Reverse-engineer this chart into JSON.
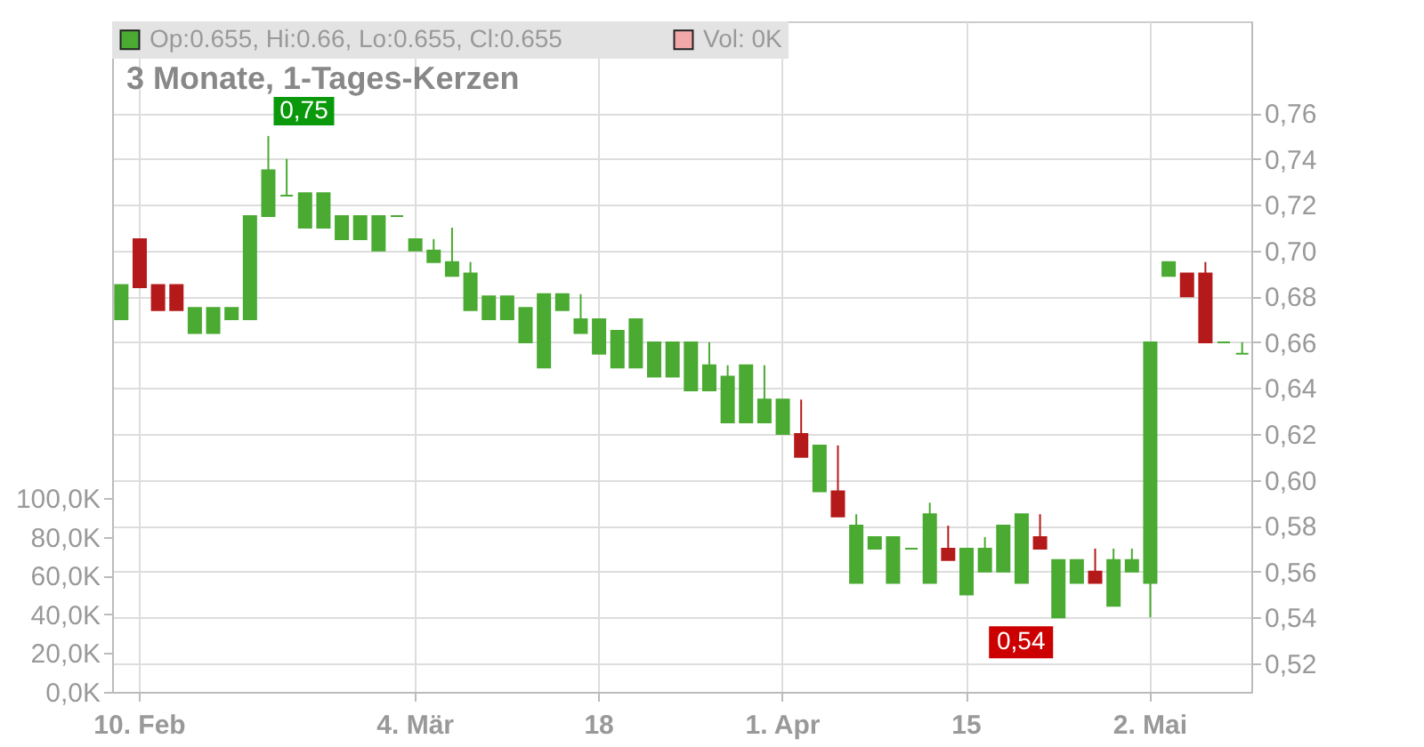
{
  "chart_data": {
    "type": "candlestick",
    "title": "3 Monate, 1-Tages-Kerzen",
    "categories": [
      null,
      "10. Feb",
      null,
      null,
      null,
      null,
      null,
      null,
      null,
      null,
      null,
      null,
      null,
      null,
      null,
      null,
      "4. Mär",
      null,
      null,
      null,
      null,
      null,
      null,
      null,
      null,
      null,
      "18",
      null,
      null,
      null,
      null,
      null,
      null,
      null,
      null,
      null,
      "1. Apr",
      null,
      null,
      null,
      null,
      null,
      null,
      null,
      null,
      null,
      "15",
      null,
      null,
      null,
      null,
      null,
      null,
      null,
      null,
      null,
      "2. Mai",
      null,
      null,
      null,
      null,
      null
    ],
    "series": [
      {
        "name": "Op:0.655, Hi:0.66, Lo:0.655, Cl:0.655",
        "color": "#4aaa32",
        "type": "candlestick",
        "ohlc": [
          [
            0.67,
            0.685,
            0.67,
            0.685
          ],
          [
            0.705,
            0.705,
            0.684,
            0.684
          ],
          [
            0.685,
            0.685,
            0.674,
            0.674
          ],
          [
            0.685,
            0.685,
            0.674,
            0.674
          ],
          [
            0.664,
            0.675,
            0.664,
            0.675
          ],
          [
            0.664,
            0.675,
            0.664,
            0.675
          ],
          [
            0.67,
            0.675,
            0.67,
            0.675
          ],
          [
            0.67,
            0.715,
            0.67,
            0.715
          ],
          [
            0.715,
            0.75,
            0.715,
            0.735
          ],
          [
            0.724,
            0.74,
            0.724,
            0.724
          ],
          [
            0.71,
            0.725,
            0.71,
            0.725
          ],
          [
            0.71,
            0.725,
            0.71,
            0.725
          ],
          [
            0.705,
            0.715,
            0.705,
            0.715
          ],
          [
            0.705,
            0.715,
            0.705,
            0.715
          ],
          [
            0.7,
            0.715,
            0.7,
            0.715
          ],
          [
            0.715,
            0.715,
            0.715,
            0.715
          ],
          [
            0.7,
            0.705,
            0.7,
            0.705
          ],
          [
            0.695,
            0.705,
            0.695,
            0.7
          ],
          [
            0.689,
            0.71,
            0.689,
            0.695
          ],
          [
            0.674,
            0.695,
            0.674,
            0.69
          ],
          [
            0.67,
            0.68,
            0.67,
            0.68
          ],
          [
            0.67,
            0.68,
            0.67,
            0.68
          ],
          [
            0.66,
            0.675,
            0.66,
            0.675
          ],
          [
            0.649,
            0.681,
            0.649,
            0.681
          ],
          [
            0.674,
            0.681,
            0.674,
            0.681
          ],
          [
            0.664,
            0.681,
            0.664,
            0.67
          ],
          [
            0.655,
            0.67,
            0.655,
            0.67
          ],
          [
            0.649,
            0.665,
            0.649,
            0.665
          ],
          [
            0.649,
            0.67,
            0.649,
            0.67
          ],
          [
            0.645,
            0.66,
            0.645,
            0.66
          ],
          [
            0.645,
            0.66,
            0.645,
            0.66
          ],
          [
            0.639,
            0.66,
            0.639,
            0.66
          ],
          [
            0.639,
            0.66,
            0.639,
            0.65
          ],
          [
            0.625,
            0.65,
            0.625,
            0.645
          ],
          [
            0.625,
            0.65,
            0.625,
            0.65
          ],
          [
            0.625,
            0.65,
            0.625,
            0.635
          ],
          [
            0.62,
            0.635,
            0.62,
            0.635
          ],
          [
            0.62,
            0.635,
            0.61,
            0.61
          ],
          [
            0.595,
            0.615,
            0.595,
            0.615
          ],
          [
            0.595,
            0.615,
            0.584,
            0.584
          ],
          [
            0.555,
            0.585,
            0.555,
            0.58
          ],
          [
            0.57,
            0.575,
            0.57,
            0.575
          ],
          [
            0.555,
            0.575,
            0.555,
            0.575
          ],
          [
            0.57,
            0.57,
            0.57,
            0.57
          ],
          [
            0.555,
            0.59,
            0.555,
            0.585
          ],
          [
            0.57,
            0.58,
            0.565,
            0.565
          ],
          [
            0.55,
            0.57,
            0.55,
            0.57
          ],
          [
            0.56,
            0.575,
            0.56,
            0.57
          ],
          [
            0.56,
            0.58,
            0.56,
            0.58
          ],
          [
            0.555,
            0.585,
            0.555,
            0.585
          ],
          [
            0.575,
            0.585,
            0.57,
            0.57
          ],
          [
            0.54,
            0.565,
            0.54,
            0.565
          ],
          [
            0.555,
            0.565,
            0.555,
            0.565
          ],
          [
            0.56,
            0.57,
            0.555,
            0.555
          ],
          [
            0.545,
            0.57,
            0.545,
            0.565
          ],
          [
            0.56,
            0.57,
            0.56,
            0.565
          ],
          [
            0.555,
            0.66,
            0.54,
            0.66
          ],
          [
            0.689,
            0.695,
            0.689,
            0.695
          ],
          [
            0.69,
            0.69,
            0.68,
            0.68
          ],
          [
            0.69,
            0.695,
            0.66,
            0.66
          ],
          [
            0.66,
            0.66,
            0.66,
            0.66
          ],
          [
            0.655,
            0.66,
            0.655,
            0.655
          ]
        ],
        "colors": [
          "#4aaa32",
          "#b51a1a",
          "#b51a1a",
          "#b51a1a",
          "#4aaa32",
          "#4aaa32",
          "#4aaa32",
          "#4aaa32",
          "#4aaa32",
          "#4aaa32",
          "#4aaa32",
          "#4aaa32",
          "#4aaa32",
          "#4aaa32",
          "#4aaa32",
          "#4aaa32",
          "#4aaa32",
          "#4aaa32",
          "#4aaa32",
          "#4aaa32",
          "#4aaa32",
          "#4aaa32",
          "#4aaa32",
          "#4aaa32",
          "#4aaa32",
          "#4aaa32",
          "#4aaa32",
          "#4aaa32",
          "#4aaa32",
          "#4aaa32",
          "#4aaa32",
          "#4aaa32",
          "#4aaa32",
          "#4aaa32",
          "#4aaa32",
          "#4aaa32",
          "#4aaa32",
          "#b51a1a",
          "#4aaa32",
          "#b51a1a",
          "#4aaa32",
          "#4aaa32",
          "#4aaa32",
          "#4aaa32",
          "#4aaa32",
          "#b51a1a",
          "#4aaa32",
          "#4aaa32",
          "#4aaa32",
          "#4aaa32",
          "#b51a1a",
          "#4aaa32",
          "#4aaa32",
          "#b51a1a",
          "#4aaa32",
          "#4aaa32",
          "#4aaa32",
          "#4aaa32",
          "#b51a1a",
          "#b51a1a",
          "#4aaa32",
          "#4aaa32"
        ]
      },
      {
        "name": "Vol: 0K",
        "color": "#f2a8a8",
        "type": "bar",
        "values": [
          null,
          null,
          null,
          null,
          null,
          null,
          null,
          null,
          null,
          null,
          null,
          null,
          null,
          null,
          null,
          null,
          null,
          null,
          null,
          null,
          null,
          null,
          null,
          null,
          null,
          null,
          null,
          null,
          null,
          null,
          null,
          null,
          null,
          null,
          null,
          null,
          null,
          null,
          null,
          null,
          null,
          null,
          null,
          null,
          null,
          null,
          null,
          null,
          null,
          null,
          null,
          null,
          null,
          null,
          null,
          null,
          null,
          null,
          null,
          null,
          null,
          null
        ]
      }
    ],
    "ylim": [
      0.5075,
      0.8
    ],
    "yticks": [
      {
        "value": 0.52,
        "label": "0,52"
      },
      {
        "value": 0.54,
        "label": "0,54"
      },
      {
        "value": 0.56,
        "label": "0,56"
      },
      {
        "value": 0.58,
        "label": "0,58"
      },
      {
        "value": 0.6,
        "label": "0,60"
      },
      {
        "value": 0.62,
        "label": "0,62"
      },
      {
        "value": 0.64,
        "label": "0,64"
      },
      {
        "value": 0.66,
        "label": "0,66"
      },
      {
        "value": 0.68,
        "label": "0,68"
      },
      {
        "value": 0.7,
        "label": "0,70"
      },
      {
        "value": 0.72,
        "label": "0,72"
      },
      {
        "value": 0.74,
        "label": "0,74"
      },
      {
        "value": 0.76,
        "label": "0,76"
      }
    ],
    "y2lim": [
      0,
      346
    ],
    "y2ticks": [
      {
        "value": 0,
        "label": "0,0K"
      },
      {
        "value": 20,
        "label": "20,0K"
      },
      {
        "value": 40,
        "label": "40,0K"
      },
      {
        "value": 60,
        "label": "60,0K"
      },
      {
        "value": 80,
        "label": "80,0K"
      },
      {
        "value": 100,
        "label": "100,0K"
      }
    ],
    "annotations": [
      "0,75",
      "0,54"
    ],
    "grid": true,
    "legend": "top left"
  }
}
